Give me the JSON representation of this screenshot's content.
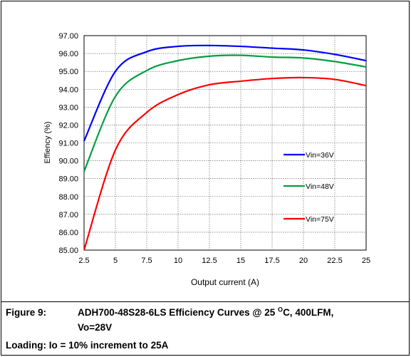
{
  "chart_data": {
    "type": "line",
    "xlabel": "Output current (A)",
    "ylabel": "Effiency (%)",
    "xlim": [
      2.5,
      25
    ],
    "ylim": [
      85,
      97
    ],
    "x_ticks": [
      "2.5",
      "5",
      "7.5",
      "10",
      "12.5",
      "15",
      "17.5",
      "20",
      "22.5",
      "25"
    ],
    "y_ticks": [
      "97.00",
      "96.00",
      "95.00",
      "94.00",
      "93.00",
      "92.00",
      "91.00",
      "90.00",
      "89.00",
      "88.00",
      "87.00",
      "86.00",
      "85.00"
    ],
    "grid": true,
    "legend_position": "right",
    "x": [
      2.5,
      5,
      7.5,
      10,
      12.5,
      15,
      17.5,
      20,
      22.5,
      25
    ],
    "series": [
      {
        "name": "Vin=36V",
        "color": "#0000ff",
        "values": [
          91.1,
          95.0,
          96.1,
          96.4,
          96.45,
          96.4,
          96.3,
          96.2,
          95.95,
          95.6
        ]
      },
      {
        "name": "Vin=48V",
        "color": "#00a040",
        "values": [
          89.4,
          93.6,
          95.05,
          95.6,
          95.85,
          95.9,
          95.8,
          95.75,
          95.55,
          95.25
        ]
      },
      {
        "name": "Vin=75V",
        "color": "#ff0000",
        "values": [
          85.0,
          90.6,
          92.7,
          93.7,
          94.25,
          94.45,
          94.6,
          94.65,
          94.55,
          94.2
        ]
      }
    ]
  },
  "caption": {
    "label": "Figure 9:",
    "title_line1_pre": "ADH700-48S28-6LS Efficiency Curves @ 25 ",
    "title_sup": "O",
    "title_line1_post": "C, 400LFM,",
    "title_line2": "Vo=28V",
    "loading": "Loading:  Io = 10% increment to 25A"
  }
}
